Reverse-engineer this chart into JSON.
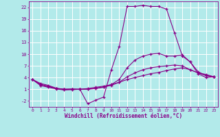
{
  "background_color": "#b2eaea",
  "grid_color": "#ffffff",
  "line_color": "#880088",
  "marker": "+",
  "xlabel": "Windchill (Refroidissement éolien,°C)",
  "xlim": [
    -0.5,
    23.5
  ],
  "ylim": [
    -3.5,
    23.5
  ],
  "xticks": [
    0,
    1,
    2,
    3,
    4,
    5,
    6,
    7,
    8,
    9,
    10,
    11,
    12,
    13,
    14,
    15,
    16,
    17,
    18,
    19,
    20,
    21,
    22,
    23
  ],
  "yticks": [
    -2,
    1,
    4,
    7,
    10,
    13,
    16,
    19,
    22
  ],
  "curves": [
    {
      "x": [
        0,
        1,
        2,
        3,
        4,
        5,
        6,
        7,
        8,
        9,
        10,
        11,
        12,
        13,
        14,
        15,
        16,
        17,
        18,
        19,
        20,
        21,
        22,
        23
      ],
      "y": [
        3.5,
        2.5,
        2.0,
        1.3,
        1.0,
        1.1,
        1.0,
        -2.7,
        -1.8,
        -1.0,
        6.0,
        12.0,
        22.2,
        22.2,
        22.5,
        22.2,
        22.2,
        21.5,
        15.5,
        9.5,
        8.0,
        5.0,
        4.0,
        4.2
      ]
    },
    {
      "x": [
        0,
        1,
        2,
        3,
        4,
        5,
        6,
        7,
        8,
        9,
        10,
        11,
        12,
        13,
        14,
        15,
        16,
        17,
        18,
        19,
        20,
        21,
        22,
        23
      ],
      "y": [
        3.5,
        2.3,
        1.8,
        1.2,
        1.0,
        1.0,
        1.0,
        1.0,
        1.2,
        1.5,
        2.2,
        3.5,
        6.5,
        8.5,
        9.5,
        10.0,
        10.2,
        9.5,
        9.5,
        9.8,
        8.0,
        5.5,
        4.5,
        4.2
      ]
    },
    {
      "x": [
        0,
        1,
        2,
        3,
        4,
        5,
        6,
        7,
        8,
        9,
        10,
        11,
        12,
        13,
        14,
        15,
        16,
        17,
        18,
        19,
        20,
        21,
        22,
        23
      ],
      "y": [
        3.5,
        2.0,
        1.7,
        1.2,
        1.0,
        1.0,
        1.0,
        1.1,
        1.3,
        1.6,
        2.0,
        2.8,
        4.2,
        5.2,
        6.0,
        6.5,
        6.8,
        7.0,
        7.2,
        7.0,
        6.0,
        5.2,
        4.5,
        4.2
      ]
    },
    {
      "x": [
        0,
        1,
        2,
        3,
        4,
        5,
        6,
        7,
        8,
        9,
        10,
        11,
        12,
        13,
        14,
        15,
        16,
        17,
        18,
        19,
        20,
        21,
        22,
        23
      ],
      "y": [
        3.5,
        2.0,
        1.5,
        1.1,
        0.8,
        0.9,
        1.0,
        1.2,
        1.5,
        1.8,
        2.2,
        2.8,
        3.5,
        4.0,
        4.5,
        5.0,
        5.3,
        5.8,
        6.2,
        6.5,
        6.0,
        5.2,
        4.8,
        4.2
      ]
    }
  ]
}
